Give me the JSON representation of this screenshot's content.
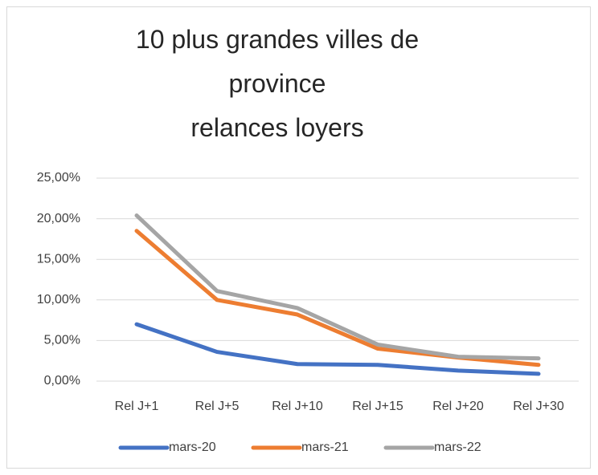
{
  "chart_data": {
    "type": "line",
    "title": "10 plus grandes villes de\nprovince\nrelances loyers",
    "categories": [
      "Rel J+1",
      "Rel J+5",
      "Rel J+10",
      "Rel J+15",
      "Rel J+20",
      "Rel J+30"
    ],
    "series": [
      {
        "name": "mars-20",
        "color": "#4472c4",
        "values": [
          7.0,
          3.6,
          2.1,
          2.0,
          1.3,
          0.9
        ]
      },
      {
        "name": "mars-21",
        "color": "#ed7d31",
        "values": [
          18.5,
          10.0,
          8.2,
          4.0,
          2.9,
          2.0
        ]
      },
      {
        "name": "mars-22",
        "color": "#a5a5a5",
        "values": [
          20.4,
          11.1,
          9.0,
          4.5,
          3.0,
          2.8
        ]
      }
    ],
    "ylim": [
      0,
      25
    ],
    "yticks": [
      {
        "value": 0,
        "label": "0,00%"
      },
      {
        "value": 5,
        "label": "5,00%"
      },
      {
        "value": 10,
        "label": "10,00%"
      },
      {
        "value": 15,
        "label": "15,00%"
      },
      {
        "value": 20,
        "label": "20,00%"
      },
      {
        "value": 25,
        "label": "25,00%"
      }
    ],
    "grid": true,
    "legend": "bottom"
  }
}
